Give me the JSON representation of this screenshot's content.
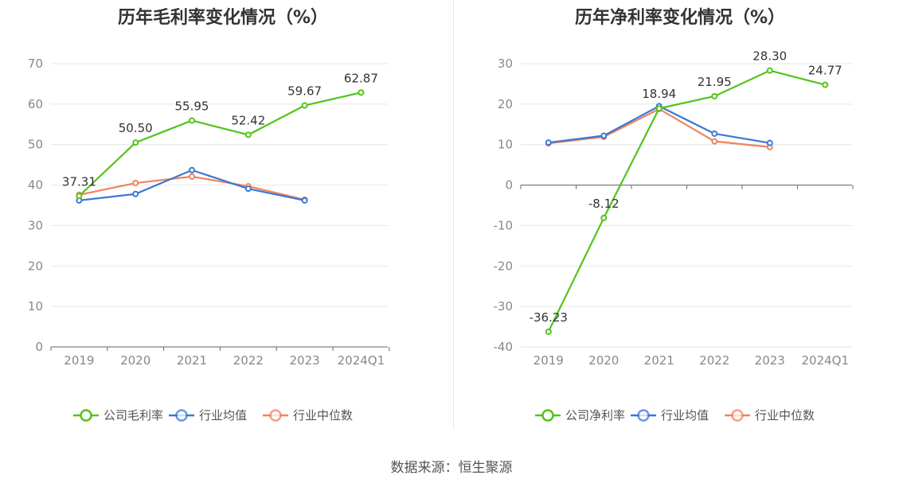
{
  "source": "数据来源：恒生聚源",
  "colors": {
    "company": "#52c41a",
    "industry_avg": "#3a78d8",
    "industry_median": "#f0845c"
  },
  "chart_data": [
    {
      "type": "line",
      "title": "历年毛利率变化情况（%）",
      "categories": [
        "2019",
        "2020",
        "2021",
        "2022",
        "2023",
        "2024Q1"
      ],
      "ylim": [
        0,
        70
      ],
      "yticks": [
        0,
        10,
        20,
        30,
        40,
        50,
        60,
        70
      ],
      "grid": true,
      "legend_position": "bottom",
      "series": [
        {
          "name": "公司毛利率",
          "values": [
            37.31,
            50.5,
            55.95,
            52.42,
            59.67,
            62.87
          ],
          "labels": [
            "37.31",
            "50.50",
            "55.95",
            "52.42",
            "59.67",
            "62.87"
          ]
        },
        {
          "name": "行业均值",
          "values": [
            36.2,
            37.8,
            43.7,
            39.1,
            36.2,
            null
          ]
        },
        {
          "name": "行业中位数",
          "values": [
            37.6,
            40.5,
            42.1,
            39.7,
            36.4,
            null
          ]
        }
      ]
    },
    {
      "type": "line",
      "title": "历年净利率变化情况（%）",
      "categories": [
        "2019",
        "2020",
        "2021",
        "2022",
        "2023",
        "2024Q1"
      ],
      "ylim": [
        -40,
        30
      ],
      "yticks": [
        -40,
        -30,
        -20,
        -10,
        0,
        10,
        20,
        30
      ],
      "grid": true,
      "legend_position": "bottom",
      "series": [
        {
          "name": "公司净利率",
          "values": [
            -36.23,
            -8.12,
            18.94,
            21.95,
            28.3,
            24.77
          ],
          "labels": [
            "-36.23",
            "-8.12",
            "18.94",
            "21.95",
            "28.30",
            "24.77"
          ]
        },
        {
          "name": "行业均值",
          "values": [
            10.5,
            12.2,
            19.5,
            12.7,
            10.4,
            null
          ]
        },
        {
          "name": "行业中位数",
          "values": [
            10.3,
            11.9,
            18.8,
            10.8,
            9.4,
            null
          ]
        }
      ]
    }
  ]
}
